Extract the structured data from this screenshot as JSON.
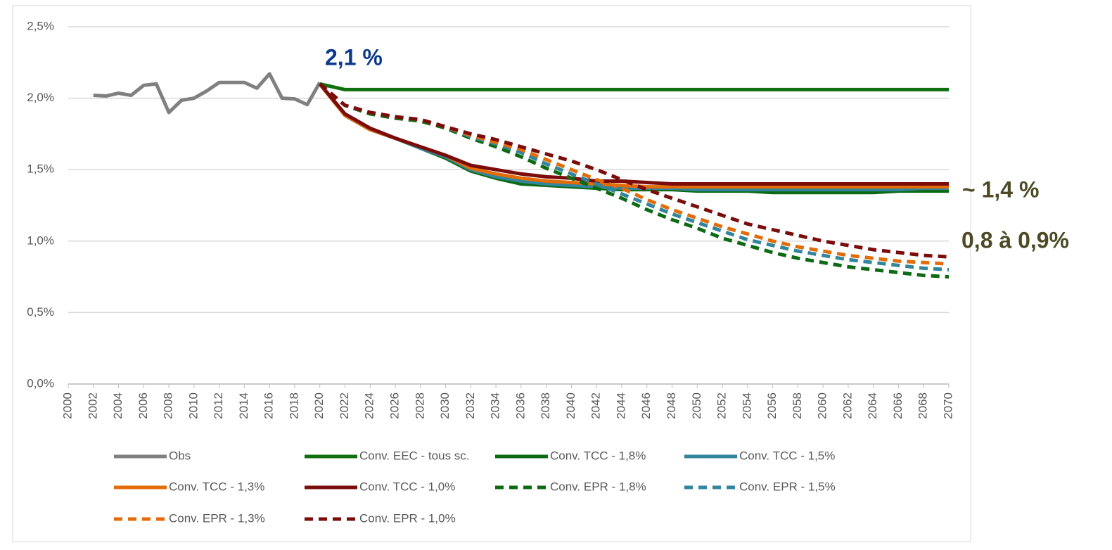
{
  "chart_data": {
    "type": "line",
    "xlim": [
      2000,
      2070
    ],
    "xticks": [
      2000,
      2002,
      2004,
      2006,
      2008,
      2010,
      2012,
      2014,
      2016,
      2018,
      2020,
      2022,
      2024,
      2026,
      2028,
      2030,
      2032,
      2034,
      2036,
      2038,
      2040,
      2042,
      2044,
      2046,
      2048,
      2050,
      2052,
      2054,
      2056,
      2058,
      2060,
      2062,
      2064,
      2066,
      2068,
      2070
    ],
    "ylim": [
      0,
      2.5
    ],
    "yticks": [
      {
        "value": 0,
        "label": "0,0%"
      },
      {
        "value": 0.5,
        "label": "0,5%"
      },
      {
        "value": 1,
        "label": "1,0%"
      },
      {
        "value": 1.5,
        "label": "1,5%"
      },
      {
        "value": 2,
        "label": "2,0%"
      },
      {
        "value": 2.5,
        "label": "2,5%"
      }
    ],
    "grid": true,
    "legend": "bottom",
    "annotations": [
      {
        "text": "2,1 %",
        "color": "#0b3a8c"
      },
      {
        "text": "~ 1,4 %",
        "color": "#4d4a25"
      },
      {
        "text": "0,8 à 0,9%",
        "color": "#4d4a25"
      }
    ],
    "series": [
      {
        "name": "Obs",
        "color": "#808080",
        "dashed": false,
        "x": [
          2002,
          2003,
          2004,
          2005,
          2006,
          2007,
          2008,
          2009,
          2010,
          2011,
          2012,
          2013,
          2014,
          2015,
          2016,
          2017,
          2018,
          2019,
          2020
        ],
        "values": [
          2.02,
          2.015,
          2.035,
          2.02,
          2.09,
          2.1,
          1.9,
          1.985,
          2.0,
          2.05,
          2.11,
          2.11,
          2.11,
          2.07,
          2.17,
          2.0,
          1.995,
          1.955,
          2.11
        ]
      },
      {
        "name": "Conv. EEC - tous sc.",
        "color": "#107010",
        "dashed": false,
        "x": [
          2020,
          2022,
          2024,
          2026,
          2028,
          2030,
          2032,
          2034,
          2036,
          2038,
          2040,
          2042,
          2044,
          2046,
          2048,
          2050,
          2052,
          2054,
          2056,
          2058,
          2060,
          2062,
          2064,
          2066,
          2068,
          2070
        ],
        "values": [
          2.1,
          2.06,
          2.06,
          2.06,
          2.06,
          2.06,
          2.06,
          2.06,
          2.06,
          2.06,
          2.06,
          2.06,
          2.06,
          2.06,
          2.06,
          2.06,
          2.06,
          2.06,
          2.06,
          2.06,
          2.06,
          2.06,
          2.06,
          2.06,
          2.06,
          2.06
        ]
      },
      {
        "name": "Conv. TCC - 1,8%",
        "color": "#0b6a12",
        "dashed": false,
        "x": [
          2020,
          2022,
          2024,
          2026,
          2028,
          2030,
          2032,
          2034,
          2036,
          2038,
          2040,
          2042,
          2044,
          2046,
          2048,
          2050,
          2052,
          2054,
          2056,
          2058,
          2060,
          2062,
          2064,
          2066,
          2068,
          2070
        ],
        "values": [
          2.1,
          1.88,
          1.78,
          1.72,
          1.65,
          1.58,
          1.49,
          1.44,
          1.4,
          1.39,
          1.38,
          1.37,
          1.36,
          1.36,
          1.36,
          1.35,
          1.35,
          1.35,
          1.34,
          1.34,
          1.34,
          1.34,
          1.34,
          1.35,
          1.35,
          1.35
        ]
      },
      {
        "name": "Conv. TCC - 1,5%",
        "color": "#31859c",
        "dashed": false,
        "x": [
          2020,
          2022,
          2024,
          2026,
          2028,
          2030,
          2032,
          2034,
          2036,
          2038,
          2040,
          2042,
          2044,
          2046,
          2048,
          2050,
          2052,
          2054,
          2056,
          2058,
          2060,
          2062,
          2064,
          2066,
          2068,
          2070
        ],
        "values": [
          2.1,
          1.88,
          1.78,
          1.72,
          1.65,
          1.59,
          1.5,
          1.45,
          1.42,
          1.4,
          1.39,
          1.38,
          1.37,
          1.37,
          1.37,
          1.36,
          1.36,
          1.36,
          1.36,
          1.36,
          1.36,
          1.36,
          1.36,
          1.36,
          1.37,
          1.37
        ]
      },
      {
        "name": "Conv. TCC - 1,3%",
        "color": "#e36c0a",
        "dashed": false,
        "x": [
          2020,
          2022,
          2024,
          2026,
          2028,
          2030,
          2032,
          2034,
          2036,
          2038,
          2040,
          2042,
          2044,
          2046,
          2048,
          2050,
          2052,
          2054,
          2056,
          2058,
          2060,
          2062,
          2064,
          2066,
          2068,
          2070
        ],
        "values": [
          2.1,
          1.88,
          1.78,
          1.72,
          1.66,
          1.6,
          1.51,
          1.47,
          1.44,
          1.42,
          1.41,
          1.4,
          1.39,
          1.38,
          1.38,
          1.38,
          1.38,
          1.38,
          1.38,
          1.38,
          1.38,
          1.38,
          1.38,
          1.38,
          1.38,
          1.38
        ]
      },
      {
        "name": "Conv. TCC - 1,0%",
        "color": "#7b0c0c",
        "dashed": false,
        "x": [
          2020,
          2022,
          2024,
          2026,
          2028,
          2030,
          2032,
          2034,
          2036,
          2038,
          2040,
          2042,
          2044,
          2046,
          2048,
          2050,
          2052,
          2054,
          2056,
          2058,
          2060,
          2062,
          2064,
          2066,
          2068,
          2070
        ],
        "values": [
          2.1,
          1.89,
          1.79,
          1.72,
          1.66,
          1.6,
          1.53,
          1.5,
          1.47,
          1.45,
          1.44,
          1.42,
          1.42,
          1.41,
          1.4,
          1.4,
          1.4,
          1.4,
          1.4,
          1.4,
          1.4,
          1.4,
          1.4,
          1.4,
          1.4,
          1.4
        ]
      },
      {
        "name": "Conv. EPR - 1,8%",
        "color": "#0b6a12",
        "dashed": true,
        "x": [
          2020,
          2022,
          2024,
          2026,
          2028,
          2030,
          2032,
          2034,
          2036,
          2038,
          2040,
          2042,
          2044,
          2046,
          2048,
          2050,
          2052,
          2054,
          2056,
          2058,
          2060,
          2062,
          2064,
          2066,
          2068,
          2070
        ],
        "values": [
          2.1,
          1.95,
          1.89,
          1.86,
          1.84,
          1.79,
          1.72,
          1.66,
          1.59,
          1.51,
          1.44,
          1.37,
          1.3,
          1.22,
          1.15,
          1.09,
          1.02,
          0.97,
          0.92,
          0.88,
          0.85,
          0.82,
          0.8,
          0.78,
          0.76,
          0.75
        ]
      },
      {
        "name": "Conv. EPR - 1,5%",
        "color": "#31859c",
        "dashed": true,
        "x": [
          2020,
          2022,
          2024,
          2026,
          2028,
          2030,
          2032,
          2034,
          2036,
          2038,
          2040,
          2042,
          2044,
          2046,
          2048,
          2050,
          2052,
          2054,
          2056,
          2058,
          2060,
          2062,
          2064,
          2066,
          2068,
          2070
        ],
        "values": [
          2.1,
          1.95,
          1.9,
          1.87,
          1.85,
          1.8,
          1.73,
          1.68,
          1.62,
          1.54,
          1.47,
          1.4,
          1.33,
          1.26,
          1.19,
          1.13,
          1.07,
          1.01,
          0.97,
          0.93,
          0.9,
          0.87,
          0.85,
          0.83,
          0.81,
          0.8
        ]
      },
      {
        "name": "Conv. EPR - 1,3%",
        "color": "#e36c0a",
        "dashed": true,
        "x": [
          2020,
          2022,
          2024,
          2026,
          2028,
          2030,
          2032,
          2034,
          2036,
          2038,
          2040,
          2042,
          2044,
          2046,
          2048,
          2050,
          2052,
          2054,
          2056,
          2058,
          2060,
          2062,
          2064,
          2066,
          2068,
          2070
        ],
        "values": [
          2.1,
          1.95,
          1.9,
          1.87,
          1.85,
          1.8,
          1.74,
          1.69,
          1.64,
          1.57,
          1.5,
          1.43,
          1.37,
          1.29,
          1.22,
          1.16,
          1.1,
          1.05,
          1.0,
          0.96,
          0.93,
          0.9,
          0.88,
          0.86,
          0.85,
          0.84
        ]
      },
      {
        "name": "Conv. EPR - 1,0%",
        "color": "#7b0c0c",
        "dashed": true,
        "x": [
          2020,
          2022,
          2024,
          2026,
          2028,
          2030,
          2032,
          2034,
          2036,
          2038,
          2040,
          2042,
          2044,
          2046,
          2048,
          2050,
          2052,
          2054,
          2056,
          2058,
          2060,
          2062,
          2064,
          2066,
          2068,
          2070
        ],
        "values": [
          2.1,
          1.95,
          1.9,
          1.87,
          1.85,
          1.8,
          1.75,
          1.71,
          1.66,
          1.61,
          1.56,
          1.5,
          1.43,
          1.36,
          1.3,
          1.24,
          1.18,
          1.12,
          1.08,
          1.04,
          1.0,
          0.97,
          0.94,
          0.92,
          0.9,
          0.89
        ]
      }
    ]
  }
}
